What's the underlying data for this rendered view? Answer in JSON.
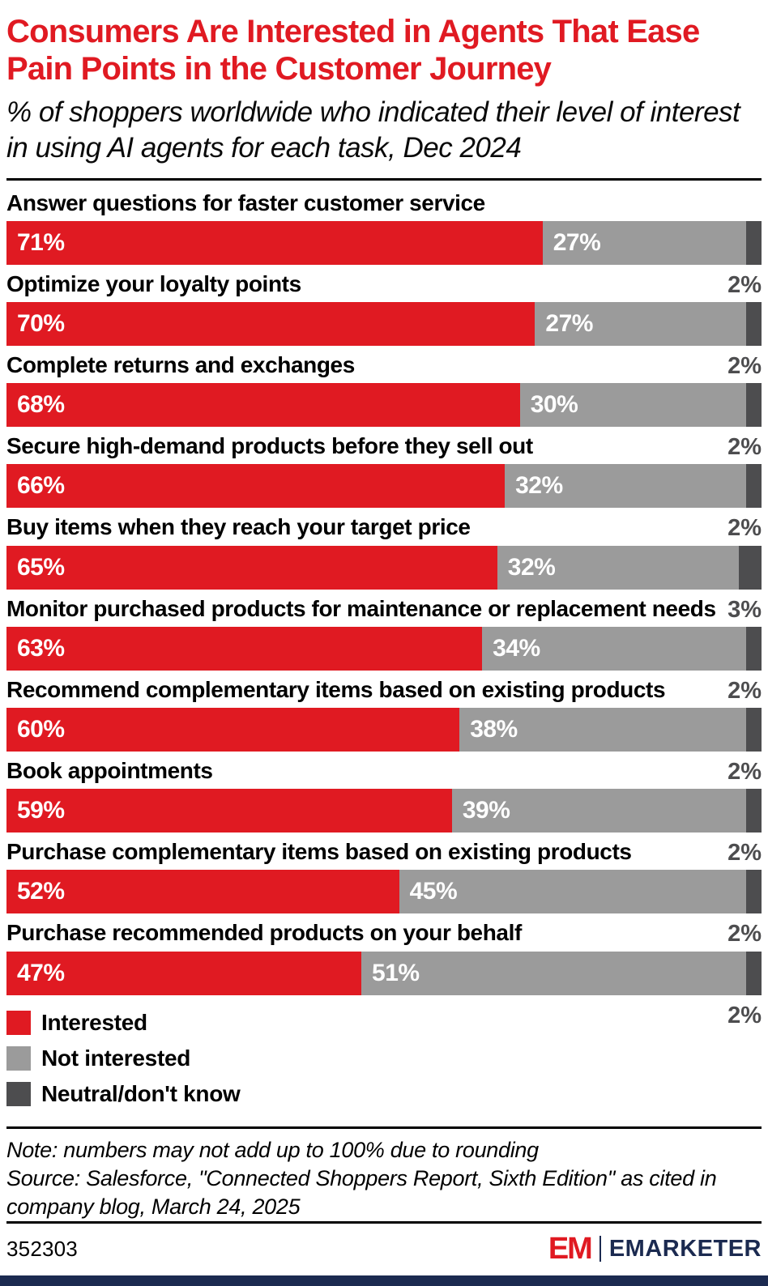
{
  "colors": {
    "red": "#E01A22",
    "gray": "#9B9B9B",
    "dark_gray": "#4D4D4F",
    "navy": "#1B2A50"
  },
  "header": {
    "title_line1": "Consumers Are Interested in Agents That Ease",
    "title_line2": "Pain Points in the Customer Journey",
    "subtitle": "% of shoppers worldwide who indicated their level of interest in using AI agents for each task, Dec 2024"
  },
  "chart_data": {
    "type": "bar",
    "orientation": "horizontal",
    "stacked": true,
    "value_suffix": "%",
    "xlim": [
      0,
      100
    ],
    "legend_position": "bottom",
    "categories": [
      "Answer questions for faster customer service",
      "Optimize your loyalty points",
      "Complete returns and exchanges",
      "Secure high-demand products before they sell out",
      "Buy items when they reach your target price",
      "Monitor purchased products for maintenance or replacement needs",
      "Recommend complementary items based on existing products",
      "Book appointments",
      "Purchase complementary items based on existing products",
      "Purchase recommended products on your behalf"
    ],
    "series": [
      {
        "name": "Interested",
        "color": "#E01A22",
        "values": [
          71,
          70,
          68,
          66,
          65,
          63,
          60,
          59,
          52,
          47
        ]
      },
      {
        "name": "Not interested",
        "color": "#9B9B9B",
        "values": [
          27,
          27,
          30,
          32,
          32,
          34,
          38,
          39,
          45,
          51
        ]
      },
      {
        "name": "Neutral/don't know",
        "color": "#4D4D4F",
        "values": [
          2,
          2,
          2,
          2,
          3,
          2,
          2,
          2,
          2,
          2
        ]
      }
    ]
  },
  "notes": {
    "note": "Note: numbers may not add up to 100% due to rounding",
    "source": "Source: Salesforce, \"Connected Shoppers Report, Sixth Edition\" as cited in company blog, March 24, 2025"
  },
  "footer": {
    "chart_id": "352303",
    "brand_em": "EM",
    "brand_name": "EMARKETER"
  }
}
